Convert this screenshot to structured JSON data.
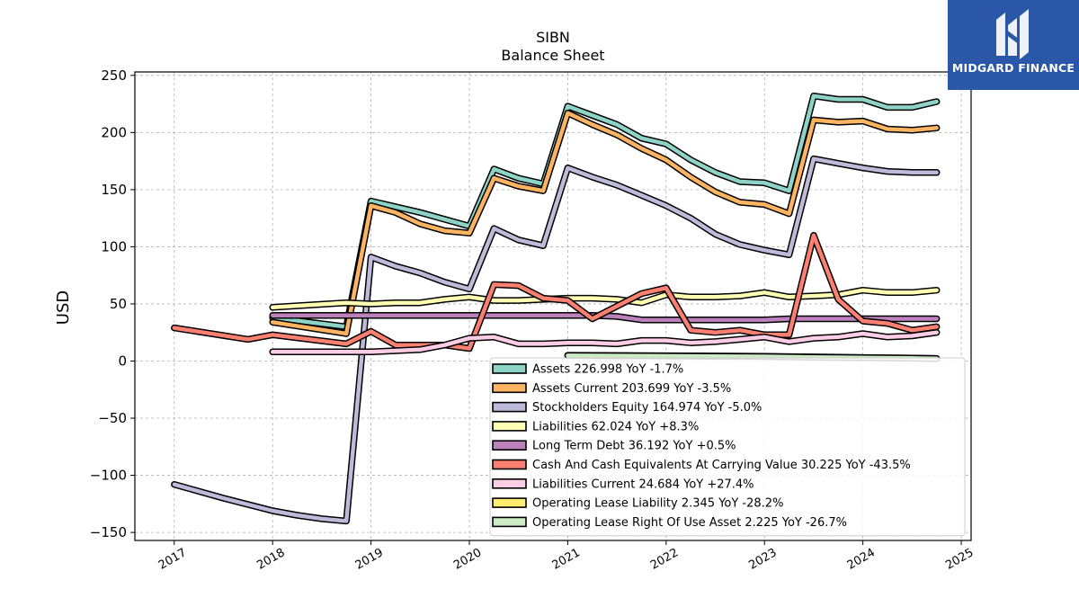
{
  "brand": {
    "name": "MIDGARD FINANCE",
    "icon": "midgard-logo-icon",
    "background": "#2b57a8"
  },
  "chart_data": {
    "type": "line",
    "title": "SIBN",
    "subtitle": "Balance  Sheet",
    "xlabel": "",
    "ylabel": "USD",
    "xlim": [
      2016.6,
      2025.1
    ],
    "ylim": [
      -157,
      253
    ],
    "x_ticks": [
      2017,
      2018,
      2019,
      2020,
      2021,
      2022,
      2023,
      2024,
      2025
    ],
    "x_tick_labels": [
      "2017",
      "2018",
      "2019",
      "2020",
      "2021",
      "2022",
      "2023",
      "2024",
      "2025"
    ],
    "y_ticks": [
      -150,
      -100,
      -50,
      0,
      50,
      100,
      150,
      200,
      250
    ],
    "y_tick_labels": [
      "−150",
      "−100",
      "−50",
      "0",
      "50",
      "100",
      "150",
      "200",
      "250"
    ],
    "grid": true,
    "legend_position": "lower-right",
    "series": [
      {
        "name": "Assets",
        "legend": "Assets  226.998 YoY -1.7%",
        "color": "#8dd3c7",
        "x": [
          2018.0,
          2018.75,
          2019.0,
          2019.25,
          2019.5,
          2019.75,
          2020.0,
          2020.25,
          2020.5,
          2020.75,
          2021.0,
          2021.25,
          2021.5,
          2021.75,
          2022.0,
          2022.25,
          2022.5,
          2022.75,
          2023.0,
          2023.25,
          2023.5,
          2023.75,
          2024.0,
          2024.25,
          2024.5,
          2024.75
        ],
        "y": [
          38,
          30,
          140,
          135,
          130,
          124,
          118,
          168,
          160,
          155,
          223,
          215,
          207,
          195,
          190,
          176,
          165,
          157,
          156,
          149,
          232,
          229,
          229,
          222,
          222,
          227
        ]
      },
      {
        "name": "Assets Current",
        "legend": "Assets Current  203.699 YoY -3.5%",
        "color": "#fdb462",
        "x": [
          2018.0,
          2018.75,
          2019.0,
          2019.25,
          2019.5,
          2019.75,
          2020.0,
          2020.25,
          2020.5,
          2020.75,
          2021.0,
          2021.25,
          2021.5,
          2021.75,
          2022.0,
          2022.25,
          2022.5,
          2022.75,
          2023.0,
          2023.25,
          2023.5,
          2023.75,
          2024.0,
          2024.25,
          2024.5,
          2024.75
        ],
        "y": [
          34,
          24,
          136,
          130,
          120,
          114,
          112,
          160,
          153,
          149,
          217,
          207,
          198,
          186,
          176,
          161,
          148,
          139,
          137,
          129,
          211,
          209,
          210,
          203,
          202,
          204
        ]
      },
      {
        "name": "Stockholders Equity",
        "legend": "Stockholders Equity  164.974 YoY -5.0%",
        "color": "#bebada",
        "x": [
          2017.0,
          2017.5,
          2018.0,
          2018.25,
          2018.5,
          2018.75,
          2019.0,
          2019.25,
          2019.5,
          2019.75,
          2020.0,
          2020.25,
          2020.5,
          2020.75,
          2021.0,
          2021.25,
          2021.5,
          2021.75,
          2022.0,
          2022.25,
          2022.5,
          2022.75,
          2023.0,
          2023.25,
          2023.5,
          2023.75,
          2024.0,
          2024.25,
          2024.5,
          2024.75
        ],
        "y": [
          -108,
          -120,
          -131,
          -135,
          -138,
          -140,
          91,
          83,
          77,
          69,
          63,
          116,
          106,
          101,
          169,
          161,
          154,
          145,
          136,
          125,
          111,
          102,
          97,
          93,
          177,
          173,
          169,
          166,
          165,
          165
        ]
      },
      {
        "name": "Liabilities",
        "legend": "Liabilities  62.024 YoY +8.3%",
        "color": "#ffffb3",
        "x": [
          2018.0,
          2018.75,
          2019.0,
          2019.25,
          2019.5,
          2019.75,
          2020.0,
          2020.25,
          2020.5,
          2020.75,
          2021.0,
          2021.25,
          2021.5,
          2021.75,
          2022.0,
          2022.25,
          2022.5,
          2022.75,
          2023.0,
          2023.25,
          2023.5,
          2023.75,
          2024.0,
          2024.25,
          2024.5,
          2024.75
        ],
        "y": [
          47,
          51,
          50,
          51,
          51,
          54,
          56,
          53,
          53,
          54,
          55,
          55,
          54,
          51,
          58,
          56,
          56,
          57,
          60,
          56,
          57,
          58,
          62,
          60,
          60,
          62
        ]
      },
      {
        "name": "Long Term Debt",
        "legend": "Long Term Debt  36.192 YoY +0.5%",
        "color": "#bc80bd",
        "x": [
          2018.0,
          2018.75,
          2019.0,
          2019.5,
          2020.0,
          2020.5,
          2021.0,
          2021.25,
          2021.5,
          2021.75,
          2022.0,
          2022.5,
          2023.0,
          2023.25,
          2023.5,
          2024.0,
          2024.5,
          2024.75
        ],
        "y": [
          40,
          40,
          40,
          40,
          40,
          40,
          40,
          40,
          39,
          36,
          36,
          36,
          36,
          37,
          37,
          37,
          37,
          37
        ]
      },
      {
        "name": "Cash And Cash Equivalents At Carrying Value",
        "legend": "Cash And Cash Equivalents At Carrying Value  30.225 YoY -43.5%",
        "color": "#fb8072",
        "x": [
          2017.0,
          2017.75,
          2018.0,
          2018.75,
          2019.0,
          2019.25,
          2019.5,
          2019.75,
          2020.0,
          2020.25,
          2020.5,
          2020.75,
          2021.0,
          2021.25,
          2021.5,
          2021.75,
          2022.0,
          2022.25,
          2022.5,
          2022.75,
          2023.0,
          2023.25,
          2023.5,
          2023.75,
          2024.0,
          2024.25,
          2024.5,
          2024.75
        ],
        "y": [
          29,
          19,
          23,
          15,
          26,
          14,
          14,
          14,
          11,
          67,
          66,
          55,
          53,
          37,
          48,
          59,
          64,
          27,
          25,
          27,
          23,
          23,
          110,
          54,
          35,
          33,
          27,
          30
        ]
      },
      {
        "name": "Liabilities Current",
        "legend": "Liabilities Current  24.684 YoY +27.4%",
        "color": "#fccde5",
        "x": [
          2018.0,
          2018.75,
          2019.0,
          2019.5,
          2019.75,
          2020.0,
          2020.25,
          2020.5,
          2020.75,
          2021.0,
          2021.25,
          2021.5,
          2021.75,
          2022.0,
          2022.25,
          2022.5,
          2022.75,
          2023.0,
          2023.25,
          2023.5,
          2023.75,
          2024.0,
          2024.25,
          2024.5,
          2024.75
        ],
        "y": [
          8,
          8,
          8,
          10,
          14,
          20,
          21,
          15,
          15,
          16,
          16,
          15,
          18,
          18,
          16,
          17,
          19,
          21,
          17,
          20,
          21,
          24,
          21,
          22,
          25
        ]
      },
      {
        "name": "Operating Lease Liability",
        "legend": "Operating Lease Liability  2.345 YoY -28.2%",
        "color": "#ffed6f",
        "x": [
          2021.0,
          2021.5,
          2022.0,
          2022.5,
          2023.0,
          2023.5,
          2024.0,
          2024.5,
          2024.75
        ],
        "y": [
          5,
          4.8,
          4.6,
          4.4,
          4.1,
          3.6,
          3.1,
          2.6,
          2.3
        ]
      },
      {
        "name": "Operating Lease Right Of Use Asset",
        "legend": "Operating Lease Right Of Use Asset  2.225 YoY -26.7%",
        "color": "#ccebc5",
        "x": [
          2021.0,
          2021.5,
          2022.0,
          2022.5,
          2023.0,
          2023.5,
          2024.0,
          2024.5,
          2024.75
        ],
        "y": [
          4.8,
          4.6,
          4.4,
          4.2,
          3.9,
          3.4,
          2.9,
          2.5,
          2.2
        ]
      }
    ]
  }
}
